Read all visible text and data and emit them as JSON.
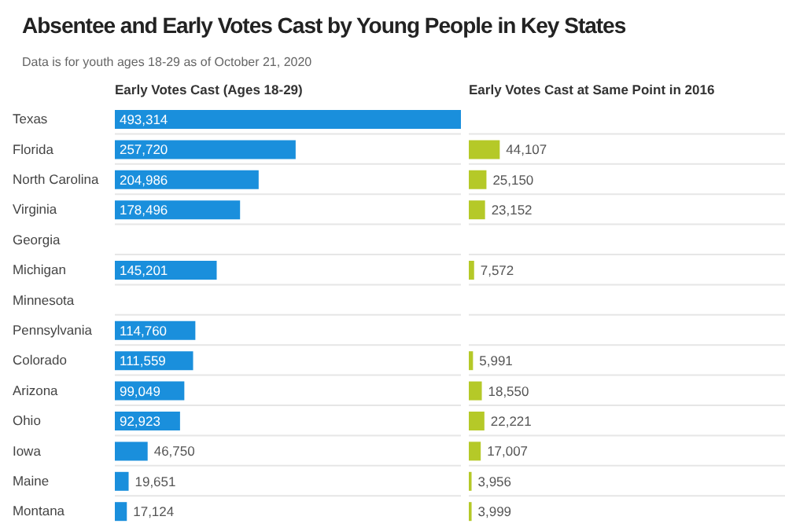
{
  "chart_data": [
    {
      "type": "bar",
      "orientation": "horizontal",
      "title": "Absentee and Early Votes Cast by Young People in Key States",
      "subtitle": "Data is for youth ages 18-29 as of October 21, 2020",
      "xlabel": "Early Votes Cast (Ages 18-29)",
      "categories": [
        "Texas",
        "Florida",
        "North Carolina",
        "Virginia",
        "Georgia",
        "Michigan",
        "Minnesota",
        "Pennsylvania",
        "Colorado",
        "Arizona",
        "Ohio",
        "Iowa",
        "Maine",
        "Montana"
      ],
      "values": [
        493314,
        257720,
        204986,
        178496,
        null,
        145201,
        null,
        114760,
        111559,
        99049,
        92923,
        46750,
        19651,
        17124
      ],
      "value_labels": [
        "493,314",
        "257,720",
        "204,986",
        "178,496",
        null,
        "145,201",
        null,
        "114,760",
        "111,559",
        "99,049",
        "92,923",
        "46,750",
        "19,651",
        "17,124"
      ],
      "color": "#1a8fdc",
      "grid": "y",
      "tick_labels": "y"
    },
    {
      "type": "bar",
      "orientation": "horizontal",
      "xlabel": "Early Votes Cast at Same Point in 2016",
      "categories": [
        null,
        null,
        null,
        null,
        null,
        null,
        null,
        null,
        null,
        null,
        null,
        null,
        null,
        null
      ],
      "values": [
        null,
        44107,
        25150,
        23152,
        null,
        7572,
        null,
        null,
        5991,
        18550,
        22221,
        17007,
        3956,
        3999
      ],
      "value_labels": [
        null,
        "44,107",
        "25,150",
        "23,152",
        null,
        "7,572",
        null,
        null,
        "5,991",
        "18,550",
        "22,221",
        "17,007",
        "3,956",
        "3,999"
      ],
      "color": "#b5c928",
      "grid": "y",
      "tick_labels": false
    }
  ]
}
